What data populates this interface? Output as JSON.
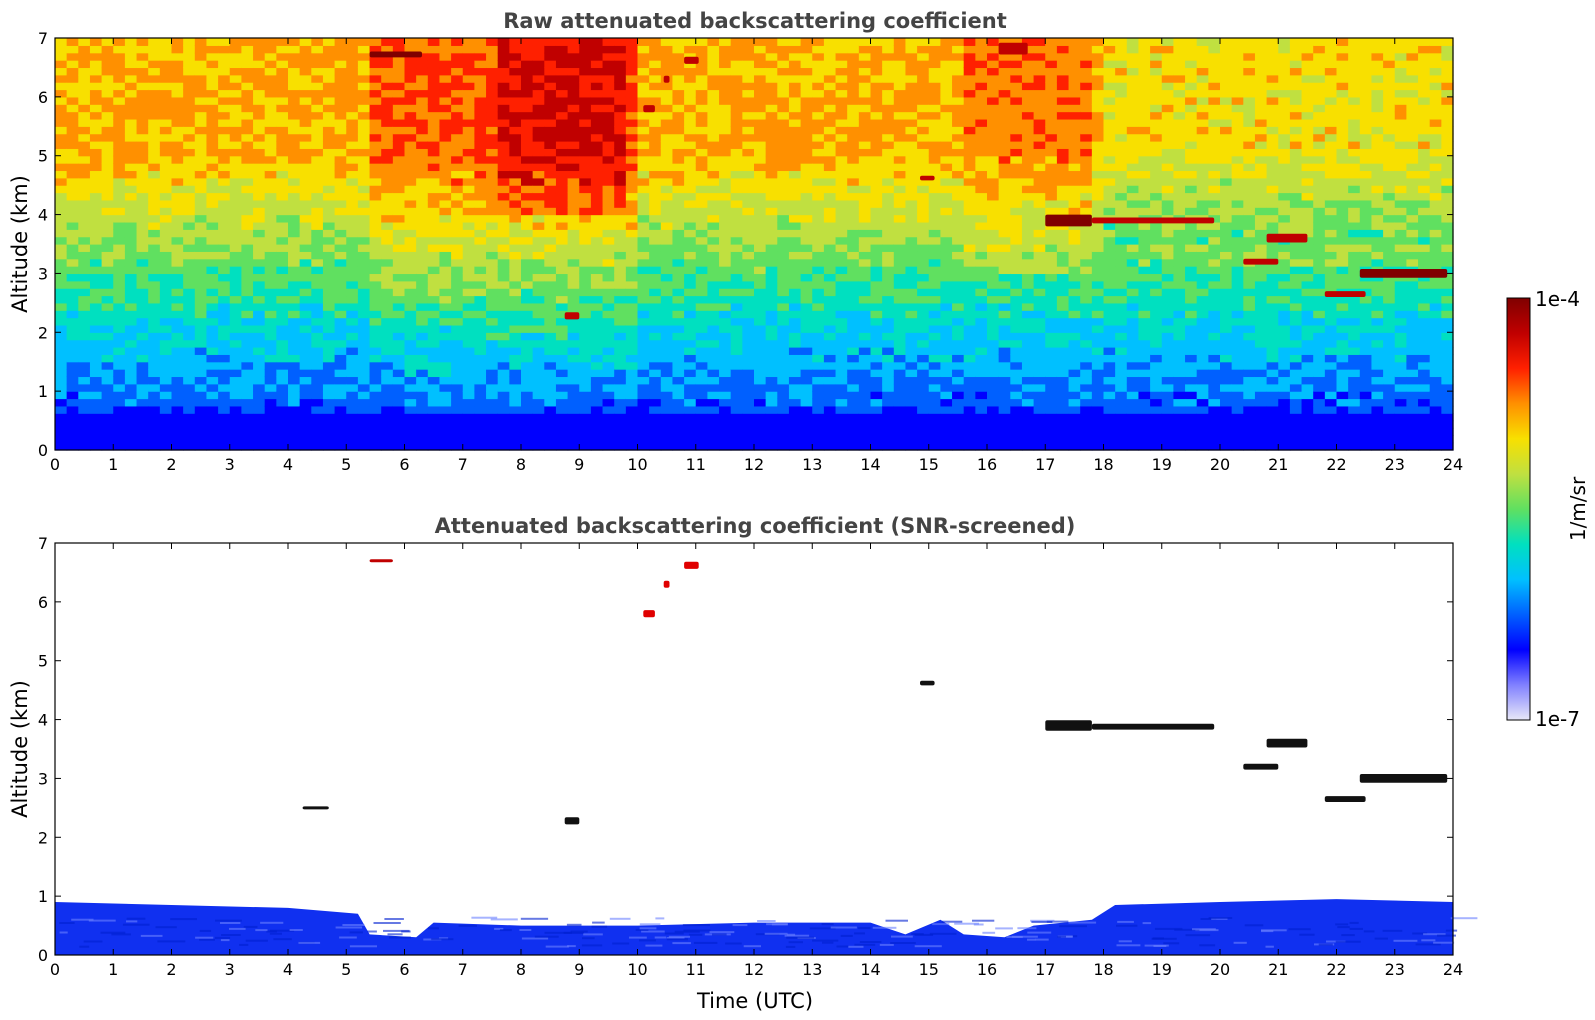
{
  "chart_data": [
    {
      "type": "heatmap",
      "title": "Raw attenuated backscattering coefficient",
      "xlabel": "",
      "ylabel": "Altitude (km)",
      "xlim": [
        0,
        24
      ],
      "ylim": [
        0,
        7
      ],
      "xticks": [
        "0",
        "1",
        "2",
        "3",
        "4",
        "5",
        "6",
        "7",
        "8",
        "9",
        "10",
        "11",
        "12",
        "13",
        "14",
        "15",
        "16",
        "17",
        "18",
        "19",
        "20",
        "21",
        "22",
        "23",
        "24"
      ],
      "yticks": [
        "0",
        "1",
        "2",
        "3",
        "4",
        "5",
        "6",
        "7"
      ],
      "features": [
        {
          "x0": 5.4,
          "x1": 6.3,
          "y": 6.72,
          "thickness": 0.1,
          "level": 0.97
        },
        {
          "x0": 10.1,
          "x1": 10.3,
          "y": 5.8,
          "thickness": 0.12,
          "level": 0.95
        },
        {
          "x0": 10.45,
          "x1": 10.55,
          "y": 6.3,
          "thickness": 0.12,
          "level": 0.95
        },
        {
          "x0": 10.8,
          "x1": 11.05,
          "y": 6.62,
          "thickness": 0.12,
          "level": 0.95
        },
        {
          "x0": 16.2,
          "x1": 16.7,
          "y": 6.82,
          "thickness": 0.2,
          "level": 0.9
        },
        {
          "x0": 8.75,
          "x1": 9.0,
          "y": 2.28,
          "thickness": 0.12,
          "level": 0.95
        },
        {
          "x0": 14.85,
          "x1": 15.1,
          "y": 4.62,
          "thickness": 0.08,
          "level": 0.95
        },
        {
          "x0": 17.0,
          "x1": 17.8,
          "y": 3.9,
          "thickness": 0.2,
          "level": 0.97
        },
        {
          "x0": 17.8,
          "x1": 19.9,
          "y": 3.9,
          "thickness": 0.1,
          "level": 0.95
        },
        {
          "x0": 20.4,
          "x1": 21.0,
          "y": 3.2,
          "thickness": 0.1,
          "level": 0.92
        },
        {
          "x0": 20.8,
          "x1": 21.5,
          "y": 3.6,
          "thickness": 0.15,
          "level": 0.95
        },
        {
          "x0": 21.8,
          "x1": 22.5,
          "y": 2.65,
          "thickness": 0.1,
          "level": 0.92
        },
        {
          "x0": 22.4,
          "x1": 23.9,
          "y": 3.0,
          "thickness": 0.15,
          "level": 0.97
        }
      ]
    },
    {
      "type": "heatmap",
      "title": "Attenuated backscattering coefficient (SNR-screened)",
      "xlabel": "Time (UTC)",
      "ylabel": "Altitude (km)",
      "xlim": [
        0,
        24
      ],
      "ylim": [
        0,
        7
      ],
      "xticks": [
        "0",
        "1",
        "2",
        "3",
        "4",
        "5",
        "6",
        "7",
        "8",
        "9",
        "10",
        "11",
        "12",
        "13",
        "14",
        "15",
        "16",
        "17",
        "18",
        "19",
        "20",
        "21",
        "22",
        "23",
        "24"
      ],
      "yticks": [
        "0",
        "1",
        "2",
        "3",
        "4",
        "5",
        "6",
        "7"
      ],
      "boundary_layer_top": [
        [
          0,
          0.9
        ],
        [
          2,
          0.85
        ],
        [
          4,
          0.8
        ],
        [
          5.2,
          0.7
        ],
        [
          5.4,
          0.35
        ],
        [
          6.2,
          0.3
        ],
        [
          6.5,
          0.55
        ],
        [
          8,
          0.5
        ],
        [
          10,
          0.5
        ],
        [
          12,
          0.55
        ],
        [
          14,
          0.55
        ],
        [
          14.6,
          0.35
        ],
        [
          15.2,
          0.6
        ],
        [
          15.6,
          0.35
        ],
        [
          16.3,
          0.3
        ],
        [
          16.8,
          0.5
        ],
        [
          17.8,
          0.6
        ],
        [
          18.2,
          0.85
        ],
        [
          20,
          0.9
        ],
        [
          22,
          0.95
        ],
        [
          24,
          0.9
        ]
      ],
      "features": [
        {
          "x0": 5.4,
          "x1": 5.8,
          "y": 6.7,
          "thickness": 0.05,
          "color": "#c00000"
        },
        {
          "x0": 10.1,
          "x1": 10.3,
          "y": 5.8,
          "thickness": 0.12,
          "color": "#e00000"
        },
        {
          "x0": 10.45,
          "x1": 10.55,
          "y": 6.3,
          "thickness": 0.12,
          "color": "#e00000"
        },
        {
          "x0": 10.8,
          "x1": 11.05,
          "y": 6.62,
          "thickness": 0.12,
          "color": "#e00000"
        },
        {
          "x0": 8.75,
          "x1": 9.0,
          "y": 2.28,
          "thickness": 0.12,
          "color": "#111111"
        },
        {
          "x0": 4.25,
          "x1": 4.7,
          "y": 2.5,
          "thickness": 0.05,
          "color": "#111111"
        },
        {
          "x0": 14.85,
          "x1": 15.1,
          "y": 4.62,
          "thickness": 0.08,
          "color": "#111111"
        },
        {
          "x0": 17.0,
          "x1": 17.8,
          "y": 3.9,
          "thickness": 0.18,
          "color": "#111111"
        },
        {
          "x0": 17.8,
          "x1": 19.9,
          "y": 3.88,
          "thickness": 0.1,
          "color": "#111111"
        },
        {
          "x0": 20.4,
          "x1": 21.0,
          "y": 3.2,
          "thickness": 0.1,
          "color": "#111111"
        },
        {
          "x0": 20.8,
          "x1": 21.5,
          "y": 3.6,
          "thickness": 0.15,
          "color": "#111111"
        },
        {
          "x0": 21.8,
          "x1": 22.5,
          "y": 2.65,
          "thickness": 0.1,
          "color": "#111111"
        },
        {
          "x0": 22.4,
          "x1": 23.9,
          "y": 3.0,
          "thickness": 0.15,
          "color": "#111111"
        }
      ]
    }
  ],
  "colorbar": {
    "label": "1/m/sr",
    "max_label": "1e-4",
    "min_label": "1e-7",
    "scale": "log",
    "colormap": [
      "#e8e8f8",
      "#8080ff",
      "#0000ff",
      "#0060ff",
      "#00c0ff",
      "#00e0c0",
      "#60e060",
      "#c0e040",
      "#f8e000",
      "#ff9000",
      "#ff2000",
      "#c00000",
      "#800000"
    ]
  }
}
